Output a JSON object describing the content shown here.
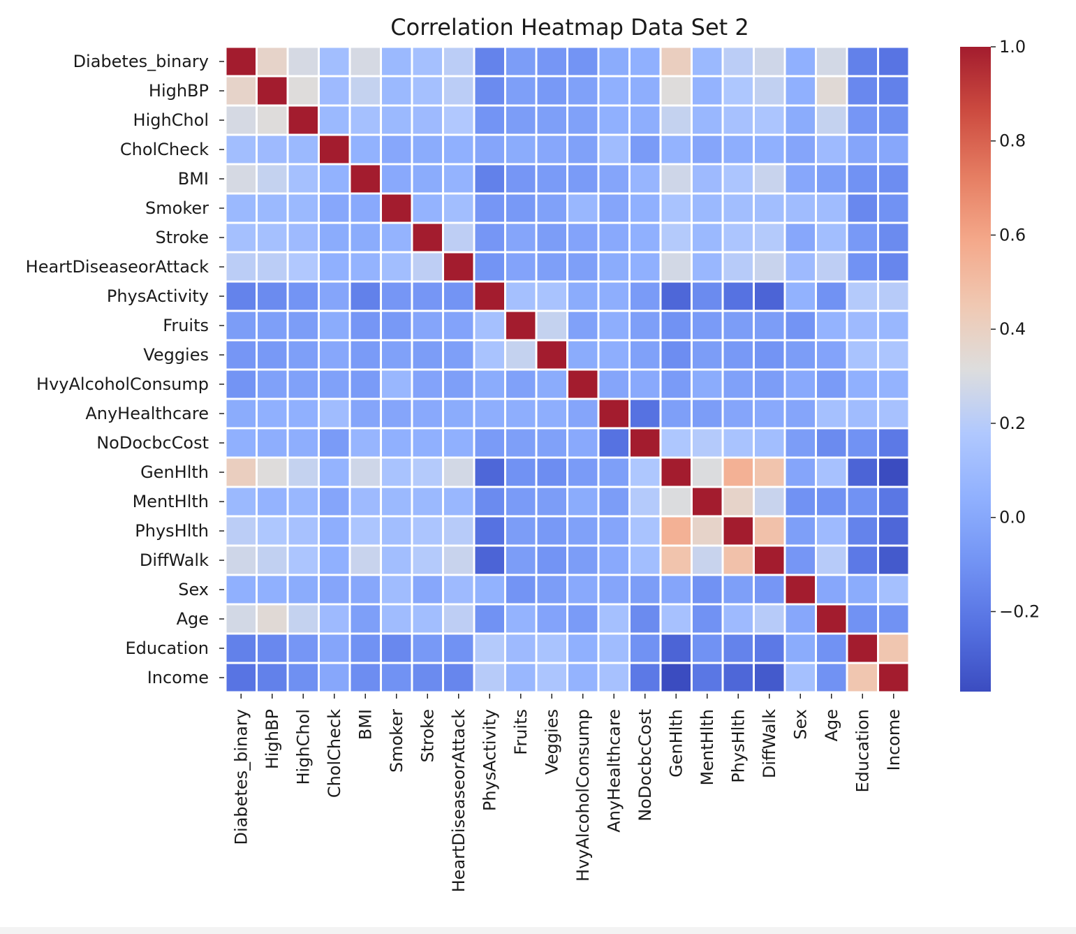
{
  "chart_data": {
    "type": "heatmap",
    "title": "Correlation Heatmap Data Set 2",
    "xlabel": "",
    "ylabel": "",
    "variables": [
      "Diabetes_binary",
      "HighBP",
      "HighChol",
      "CholCheck",
      "BMI",
      "Smoker",
      "Stroke",
      "HeartDiseaseorAttack",
      "PhysActivity",
      "Fruits",
      "Veggies",
      "HvyAlcoholConsump",
      "AnyHealthcare",
      "NoDocbcCost",
      "GenHlth",
      "MentHlth",
      "PhysHlth",
      "DiffWalk",
      "Sex",
      "Age",
      "Education",
      "Income"
    ],
    "colormap": "coolwarm",
    "vmin": -0.37,
    "vmax": 1.0,
    "colorbar_ticks": [
      1.0,
      0.8,
      0.6,
      0.4,
      0.2,
      0.0,
      -0.2
    ],
    "colorbar_tick_labels": [
      "1.0",
      "0.8",
      "0.6",
      "0.4",
      "0.2",
      "0.0",
      "−0.2"
    ],
    "cell_border_color": "#ffffff",
    "matrix": [
      [
        1.0,
        0.38,
        0.29,
        0.12,
        0.29,
        0.09,
        0.13,
        0.21,
        -0.16,
        -0.05,
        -0.08,
        -0.09,
        0.02,
        0.04,
        0.41,
        0.09,
        0.21,
        0.27,
        0.04,
        0.28,
        -0.17,
        -0.22
      ],
      [
        0.38,
        1.0,
        0.32,
        0.1,
        0.24,
        0.09,
        0.13,
        0.21,
        -0.13,
        -0.04,
        -0.07,
        -0.03,
        0.04,
        0.03,
        0.32,
        0.06,
        0.17,
        0.23,
        0.04,
        0.34,
        -0.14,
        -0.17
      ],
      [
        0.29,
        0.32,
        1.0,
        0.09,
        0.13,
        0.09,
        0.1,
        0.18,
        -0.09,
        -0.05,
        -0.04,
        -0.03,
        0.04,
        0.03,
        0.24,
        0.08,
        0.14,
        0.16,
        0.02,
        0.24,
        -0.08,
        -0.11
      ],
      [
        0.12,
        0.1,
        0.09,
        1.0,
        0.05,
        -0.0,
        0.02,
        0.04,
        -0.01,
        0.02,
        0.0,
        -0.03,
        0.11,
        -0.06,
        0.06,
        -0.01,
        0.03,
        0.04,
        -0.01,
        0.1,
        -0.01,
        0.0
      ],
      [
        0.29,
        0.24,
        0.13,
        0.05,
        1.0,
        0.01,
        0.02,
        0.06,
        -0.17,
        -0.08,
        -0.06,
        -0.06,
        -0.01,
        0.07,
        0.27,
        0.1,
        0.16,
        0.25,
        0.0,
        -0.04,
        -0.1,
        -0.12
      ],
      [
        0.09,
        0.09,
        0.09,
        -0.0,
        0.01,
        1.0,
        0.06,
        0.12,
        -0.08,
        -0.07,
        -0.03,
        0.08,
        -0.01,
        0.04,
        0.15,
        0.09,
        0.12,
        0.12,
        0.11,
        0.11,
        -0.14,
        -0.1
      ],
      [
        0.13,
        0.13,
        0.1,
        0.02,
        0.02,
        0.06,
        1.0,
        0.22,
        -0.08,
        -0.01,
        -0.05,
        -0.02,
        0.01,
        0.04,
        0.19,
        0.09,
        0.16,
        0.19,
        0.0,
        0.12,
        -0.07,
        -0.13
      ],
      [
        0.21,
        0.21,
        0.18,
        0.04,
        0.06,
        0.12,
        0.22,
        1.0,
        -0.09,
        -0.02,
        -0.04,
        -0.04,
        0.02,
        0.04,
        0.28,
        0.08,
        0.2,
        0.25,
        0.1,
        0.22,
        -0.1,
        -0.15
      ],
      [
        -0.16,
        -0.13,
        -0.09,
        -0.01,
        -0.17,
        -0.08,
        -0.08,
        -0.09,
        1.0,
        0.13,
        0.15,
        0.02,
        0.03,
        -0.06,
        -0.27,
        -0.13,
        -0.23,
        -0.28,
        0.05,
        -0.1,
        0.19,
        0.2
      ],
      [
        -0.05,
        -0.04,
        -0.05,
        0.02,
        -0.08,
        -0.07,
        -0.01,
        -0.02,
        0.13,
        1.0,
        0.24,
        -0.03,
        0.03,
        -0.04,
        -0.1,
        -0.06,
        -0.05,
        -0.05,
        -0.09,
        0.06,
        0.1,
        0.08
      ],
      [
        -0.08,
        -0.07,
        -0.04,
        0.0,
        -0.06,
        -0.03,
        -0.05,
        -0.04,
        0.15,
        0.24,
        1.0,
        0.02,
        0.03,
        -0.03,
        -0.12,
        -0.05,
        -0.07,
        -0.09,
        -0.05,
        -0.02,
        0.15,
        0.16
      ],
      [
        -0.09,
        -0.03,
        -0.03,
        -0.03,
        -0.06,
        0.08,
        -0.02,
        -0.04,
        0.02,
        -0.03,
        0.02,
        1.0,
        -0.01,
        0.01,
        -0.06,
        0.02,
        -0.03,
        -0.05,
        0.01,
        -0.06,
        0.04,
        0.06
      ],
      [
        0.02,
        0.04,
        0.04,
        0.11,
        -0.01,
        -0.01,
        0.01,
        0.02,
        0.03,
        0.03,
        0.03,
        -0.01,
        1.0,
        -0.23,
        -0.04,
        -0.05,
        -0.01,
        0.01,
        -0.01,
        0.13,
        0.11,
        0.14
      ],
      [
        0.04,
        0.03,
        0.03,
        -0.06,
        0.07,
        0.04,
        0.04,
        0.04,
        -0.06,
        -0.04,
        -0.03,
        0.01,
        -0.23,
        1.0,
        0.17,
        0.19,
        0.15,
        0.12,
        -0.05,
        -0.13,
        -0.1,
        -0.2
      ],
      [
        0.41,
        0.32,
        0.24,
        0.06,
        0.27,
        0.15,
        0.19,
        0.28,
        -0.27,
        -0.1,
        -0.12,
        -0.06,
        -0.04,
        0.17,
        1.0,
        0.31,
        0.55,
        0.47,
        -0.01,
        0.14,
        -0.28,
        -0.37
      ],
      [
        0.09,
        0.06,
        0.08,
        -0.01,
        0.1,
        0.09,
        0.09,
        0.08,
        -0.13,
        -0.06,
        -0.05,
        0.02,
        -0.05,
        0.19,
        0.31,
        1.0,
        0.38,
        0.25,
        -0.1,
        -0.1,
        -0.1,
        -0.21
      ],
      [
        0.21,
        0.17,
        0.14,
        0.03,
        0.16,
        0.12,
        0.16,
        0.2,
        -0.23,
        -0.05,
        -0.07,
        -0.03,
        -0.01,
        0.15,
        0.55,
        0.38,
        1.0,
        0.48,
        -0.04,
        0.1,
        -0.16,
        -0.27
      ],
      [
        0.27,
        0.23,
        0.16,
        0.04,
        0.25,
        0.12,
        0.19,
        0.25,
        -0.28,
        -0.05,
        -0.09,
        -0.05,
        0.01,
        0.12,
        0.47,
        0.25,
        0.48,
        1.0,
        -0.08,
        0.2,
        -0.2,
        -0.32
      ],
      [
        0.04,
        0.04,
        0.02,
        -0.01,
        0.0,
        0.11,
        0.0,
        0.1,
        0.05,
        -0.09,
        -0.05,
        0.01,
        -0.01,
        -0.05,
        -0.01,
        -0.1,
        -0.04,
        -0.08,
        1.0,
        -0.0,
        0.02,
        0.13
      ],
      [
        0.28,
        0.34,
        0.24,
        0.1,
        -0.04,
        0.11,
        0.12,
        0.22,
        -0.1,
        0.06,
        -0.02,
        -0.06,
        0.13,
        -0.13,
        0.14,
        -0.1,
        0.1,
        0.2,
        -0.0,
        1.0,
        -0.1,
        -0.1
      ],
      [
        -0.17,
        -0.14,
        -0.08,
        -0.01,
        -0.1,
        -0.14,
        -0.07,
        -0.1,
        0.19,
        0.1,
        0.15,
        0.04,
        0.11,
        -0.1,
        -0.28,
        -0.1,
        -0.16,
        -0.2,
        0.02,
        -0.1,
        1.0,
        0.46
      ],
      [
        -0.22,
        -0.17,
        -0.11,
        0.0,
        -0.12,
        -0.1,
        -0.13,
        -0.15,
        0.2,
        0.08,
        0.16,
        0.06,
        0.14,
        -0.2,
        -0.37,
        -0.21,
        -0.27,
        -0.32,
        0.13,
        -0.1,
        0.46,
        1.0
      ]
    ]
  }
}
